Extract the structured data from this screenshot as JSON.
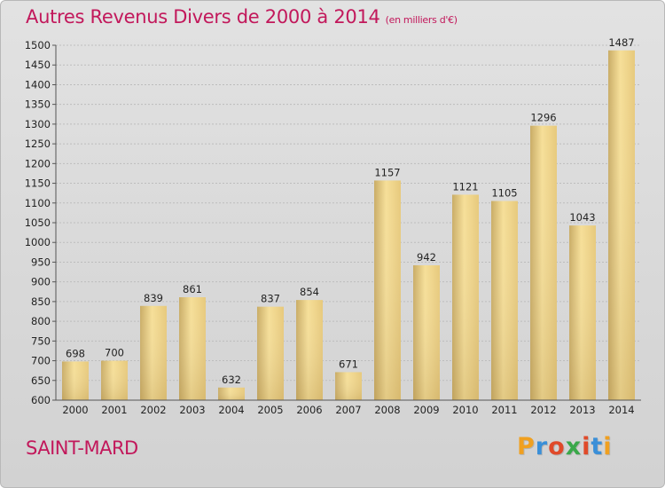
{
  "header": {
    "title": "Autres Revenus Divers de 2000 à 2014",
    "subtitle": "(en milliers d'€)"
  },
  "footer": {
    "city": "SAINT-MARD",
    "logo": [
      "P",
      "r",
      "o",
      "x",
      "i",
      "t",
      "i"
    ]
  },
  "colors": {
    "title": "#c2185b",
    "bar_light": "#f6df98",
    "bar_dark": "#c9ac66",
    "logo": [
      "#f0a020",
      "#3a8fd8",
      "#e04a2a",
      "#3aa84a",
      "#e04a2a",
      "#3a8fd8",
      "#f0a020"
    ]
  },
  "chart_data": {
    "type": "bar",
    "categories": [
      "2000",
      "2001",
      "2002",
      "2003",
      "2004",
      "2005",
      "2006",
      "2007",
      "2008",
      "2009",
      "2010",
      "2011",
      "2012",
      "2013",
      "2014"
    ],
    "values": [
      698,
      700,
      839,
      861,
      632,
      837,
      854,
      671,
      1157,
      942,
      1121,
      1105,
      1296,
      1043,
      1487
    ],
    "title": "Autres Revenus Divers de 2000 à 2014",
    "subtitle": "(en milliers d'€)",
    "ylim": [
      600,
      1500
    ],
    "yticks": [
      600,
      650,
      700,
      750,
      800,
      850,
      900,
      950,
      1000,
      1050,
      1100,
      1150,
      1200,
      1250,
      1300,
      1350,
      1400,
      1450,
      1500
    ],
    "grid": true,
    "data_labels": true
  }
}
